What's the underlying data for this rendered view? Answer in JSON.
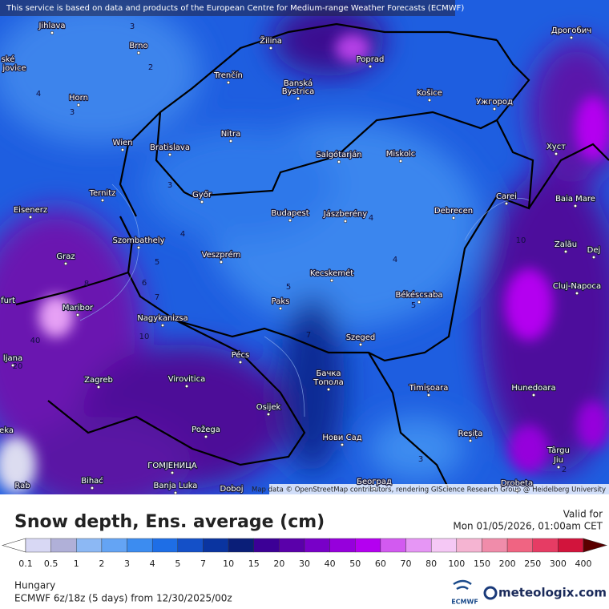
{
  "header": {
    "notice": "This service is based on data and products of the European Centre for Medium-range Weather Forecasts (ECMWF)"
  },
  "map": {
    "cities": [
      "Jihlava",
      "Brno",
      "Žilina",
      "Poprad",
      "Дрогобич",
      "ské",
      "jovice",
      "Horn",
      "Trenčín",
      "Banská",
      "Bystrica",
      "Košice",
      "Ужгород",
      "Wien",
      "Bratislava",
      "Nitra",
      "Salgótarján",
      "Miskolc",
      "Хуст",
      "Ternitz",
      "Győr",
      "Carei",
      "Baia Mare",
      "Eisenerz",
      "Budapest",
      "Jászberény",
      "Debrecen",
      "Zalău",
      "Szombathely",
      "Graz",
      "Veszprém",
      "Dej",
      "Kecskemét",
      "Cluj-Napoca",
      "furt",
      "Paks",
      "Békéscsaba",
      "Maribor",
      "Nagykanizsa",
      "Szeged",
      "ljana",
      "Pécs",
      "Бачка",
      "Топола",
      "Zagreb",
      "Virovitica",
      "Timișoara",
      "Hunedoara",
      "Osijek",
      "Požega",
      "Нови Сад",
      "Reșița",
      "eka",
      "Târgu",
      "Jiu",
      "ГОМЈЕНИЦА",
      "Bihać",
      "Banja Luka",
      "Doboj",
      "Београд",
      "Drobeta",
      "Rab"
    ],
    "contour_labels": [
      "3",
      "2",
      "4",
      "3",
      "4",
      "5",
      "6",
      "7",
      "8",
      "10",
      "40",
      "20",
      "5",
      "4",
      "5",
      "7",
      "4",
      "3",
      "10",
      "2",
      "3"
    ],
    "attribution": "Map data © OpenStreetMap contributors, rendering GIScience Research Group @ Heidelberg University"
  },
  "legend": {
    "title": "Snow depth, Ens. average (cm)",
    "valid_label": "Valid for",
    "valid_time": "Mon 01/05/2026, 01:00am CET",
    "ticks": [
      "0.1",
      "0.5",
      "1",
      "2",
      "3",
      "4",
      "5",
      "7",
      "10",
      "15",
      "20",
      "30",
      "40",
      "50",
      "60",
      "70",
      "80",
      "100",
      "150",
      "200",
      "250",
      "300",
      "400"
    ],
    "colors": [
      "#ffffff",
      "#d8d8f4",
      "#b0b0d8",
      "#8cb8f4",
      "#64a4f4",
      "#3c8cf0",
      "#1e6ee6",
      "#1450c8",
      "#0a34a0",
      "#0a1e78",
      "#3c0096",
      "#5a00aa",
      "#7800c8",
      "#9600dc",
      "#b400f0",
      "#d25af0",
      "#e696f5",
      "#f5c8f5",
      "#f5b4d2",
      "#f08caa",
      "#f06482",
      "#e63c64",
      "#d2143c",
      "#a00014",
      "#5a0000"
    ]
  },
  "footer": {
    "region": "Hungary",
    "model": "ECMWF 6z/18z (5 days) from 12/30/2025/00z",
    "logo_ecmwf": "ECMWF",
    "logo_site": "meteologix.com"
  }
}
